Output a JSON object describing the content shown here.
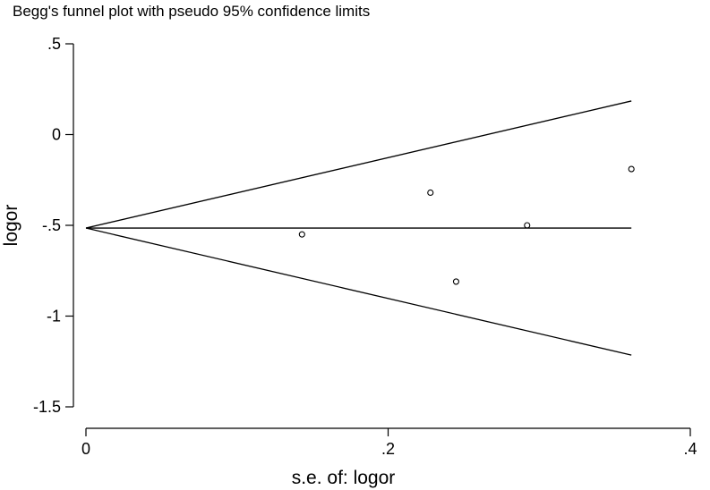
{
  "chart_data": {
    "type": "scatter",
    "title": "Begg's funnel plot with pseudo 95% confidence limits",
    "xlabel": "s.e. of: logor",
    "ylabel": "logor",
    "xlim": [
      0,
      0.4
    ],
    "ylim": [
      -1.5,
      0.5
    ],
    "x_ticks": [
      {
        "value": 0,
        "label": "0"
      },
      {
        "value": 0.2,
        "label": ".2"
      },
      {
        "value": 0.4,
        "label": ".4"
      }
    ],
    "y_ticks": [
      {
        "value": 0.5,
        "label": ".5"
      },
      {
        "value": 0,
        "label": "0"
      },
      {
        "value": -0.5,
        "label": "-.5"
      },
      {
        "value": -1,
        "label": "-1"
      },
      {
        "value": -1.5,
        "label": "-1.5"
      }
    ],
    "grid": false,
    "legend": "none",
    "points": [
      {
        "x": 0.143,
        "y": -0.55
      },
      {
        "x": 0.228,
        "y": -0.32
      },
      {
        "x": 0.245,
        "y": -0.81
      },
      {
        "x": 0.292,
        "y": -0.5
      },
      {
        "x": 0.361,
        "y": -0.19
      }
    ],
    "pooled_estimate": -0.515,
    "se_max": 0.361,
    "confidence_limits": {
      "upper": [
        {
          "x": 0,
          "y": -0.515
        },
        {
          "x": 0.361,
          "y": 0.185
        }
      ],
      "lower": [
        {
          "x": 0,
          "y": -0.515
        },
        {
          "x": 0.361,
          "y": -1.215
        }
      ]
    },
    "colors": {
      "line": "#000000",
      "marker": "#000000"
    }
  }
}
